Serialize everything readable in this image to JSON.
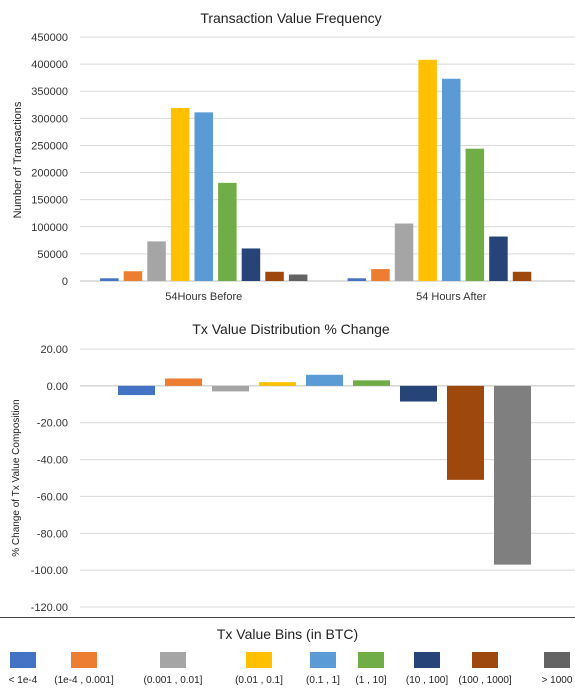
{
  "chart_data": [
    {
      "type": "bar",
      "title": "Transaction Value Frequency",
      "ylabel": "Number of Transactions",
      "xlabel": "",
      "ylim": [
        0,
        450000
      ],
      "yticks": [
        "0",
        "50000",
        "100000",
        "150000",
        "200000",
        "250000",
        "300000",
        "350000",
        "400000",
        "450000"
      ],
      "grid": true,
      "categories": [
        "54Hours Before",
        "54 Hours After"
      ],
      "series": [
        {
          "name": "< 1e-4",
          "color": "#4472c4",
          "values": [
            5000,
            5000
          ]
        },
        {
          "name": "(1e-4 , 0.001]",
          "color": "#ed7d31",
          "values": [
            18000,
            22000
          ]
        },
        {
          "name": "(0.001 , 0.01]",
          "color": "#a5a5a5",
          "values": [
            73000,
            106000
          ]
        },
        {
          "name": "(0.01 , 0.1]",
          "color": "#ffc000",
          "values": [
            319000,
            408000
          ]
        },
        {
          "name": "(0.1 , 1]",
          "color": "#5b9bd5",
          "values": [
            311000,
            373000
          ]
        },
        {
          "name": "(1 , 10]",
          "color": "#70ad47",
          "values": [
            181000,
            244000
          ]
        },
        {
          "name": "(10 , 100]",
          "color": "#264478",
          "values": [
            60000,
            82000
          ]
        },
        {
          "name": "(100 , 1000]",
          "color": "#9e480e",
          "values": [
            17000,
            17000
          ]
        },
        {
          "name": "> 1000",
          "color": "#636363",
          "values": [
            12000,
            null
          ]
        }
      ]
    },
    {
      "type": "bar",
      "title": "Tx Value Distribution % Change",
      "ylabel": "% Change of Tx Value Composition",
      "xlabel": "",
      "ylim": [
        -120,
        20
      ],
      "yticks": [
        "20.00",
        "0.00",
        "-20.00",
        "-40.00",
        "-60.00",
        "-80.00",
        "-100.00",
        "-120.00"
      ],
      "grid": true,
      "categories": [
        "< 1e-4",
        "(1e-4 , 0.001]",
        "(0.001 , 0.01]",
        "(0.01 , 0.1]",
        "(0.1 , 1]",
        "(1 , 10]",
        "(10 , 100]",
        "(100 , 1000]",
        "> 1000"
      ],
      "values": [
        -5,
        4,
        -3,
        2,
        6,
        3,
        -8.5,
        -51,
        -97
      ],
      "colors": [
        "#4472c4",
        "#ed7d31",
        "#a5a5a5",
        "#ffc000",
        "#5b9bd5",
        "#70ad47",
        "#264478",
        "#9e480e",
        "#7f7f7f"
      ]
    }
  ],
  "legend": {
    "title": "Tx Value Bins (in BTC)",
    "items": [
      {
        "label": "< 1e-4",
        "color": "#4472c4"
      },
      {
        "label": "(1e-4 , 0.001]",
        "color": "#ed7d31"
      },
      {
        "label": "(0.001 , 0.01]",
        "color": "#a5a5a5"
      },
      {
        "label": "(0.01 , 0.1]",
        "color": "#ffc000"
      },
      {
        "label": "(0.1 , 1]",
        "color": "#5b9bd5"
      },
      {
        "label": "(1 , 10]",
        "color": "#70ad47"
      },
      {
        "label": "(10 , 100]",
        "color": "#264478"
      },
      {
        "label": "(100 , 1000]",
        "color": "#9e480e"
      },
      {
        "label": "> 1000",
        "color": "#636363"
      }
    ]
  }
}
